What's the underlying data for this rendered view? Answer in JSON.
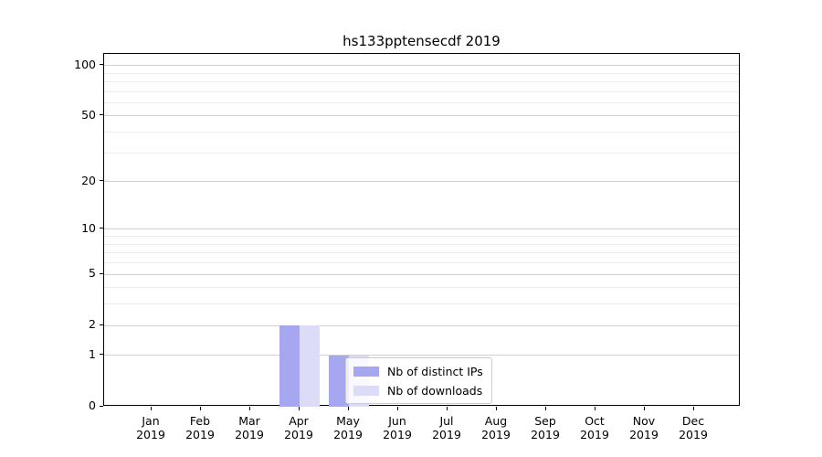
{
  "chart_data": {
    "type": "bar",
    "title": "hs133pptensecdf 2019",
    "categories": [
      "Jan",
      "Feb",
      "Mar",
      "Apr",
      "May",
      "Jun",
      "Jul",
      "Aug",
      "Sep",
      "Oct",
      "Nov",
      "Dec"
    ],
    "category_year": "2019",
    "series": [
      {
        "name": "Nb of distinct IPs",
        "color": "#a6a6f1",
        "values": [
          0,
          0,
          0,
          2,
          1,
          0,
          0,
          0,
          0,
          0,
          0,
          0
        ]
      },
      {
        "name": "Nb of downloads",
        "color": "#dcdcf8",
        "values": [
          0,
          0,
          0,
          2,
          1,
          0,
          0,
          0,
          0,
          0,
          0,
          0
        ]
      }
    ],
    "yscale": "log1p",
    "ylim": [
      0,
      117
    ],
    "yticks": [
      0,
      1,
      2,
      5,
      10,
      20,
      50,
      100
    ],
    "yticks_minor": [
      3,
      4,
      6,
      7,
      8,
      9,
      30,
      40,
      60,
      70,
      80,
      90
    ],
    "grid": "horizontal-only",
    "legend_position": "inside-lower-center",
    "colors": {
      "major_grid": "#d0d0d0",
      "minor_grid": "#ececec",
      "axis": "#000000",
      "text": "#000000",
      "background": "#ffffff"
    }
  }
}
